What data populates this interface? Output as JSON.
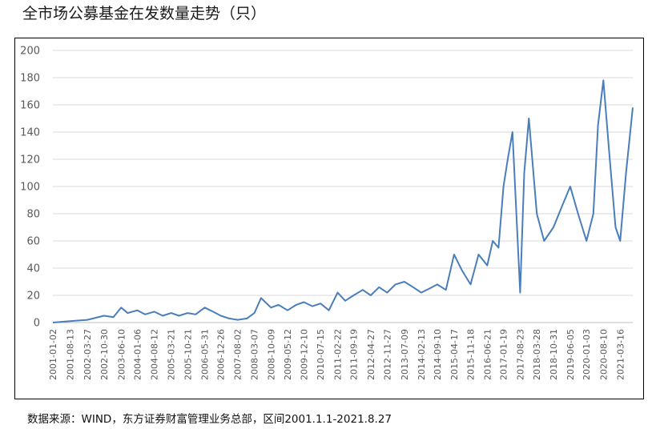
{
  "title": "全市场公募基金在发数量走势（只）",
  "source": "数据来源：WIND，东方证券财富管理业务总部，区间2001.1.1-2021.8.27",
  "colors": {
    "line": "#4a7ebb",
    "grid": "#d9d9d9",
    "axis": "#bfbfbf",
    "tick_text": "#595959"
  },
  "chart_data": {
    "type": "line",
    "title": "全市场公募基金在发数量走势（只）",
    "xlabel": "",
    "ylabel": "",
    "ylim": [
      0,
      200
    ],
    "y_ticks": [
      0,
      20,
      40,
      60,
      80,
      100,
      120,
      140,
      160,
      180,
      200
    ],
    "grid": true,
    "legend": "none",
    "x_ticks": [
      "2001-01-02",
      "2001-08-13",
      "2002-03-27",
      "2002-10-30",
      "2003-06-10",
      "2004-01-06",
      "2004-08-12",
      "2005-03-21",
      "2005-10-21",
      "2006-05-31",
      "2006-12-26",
      "2007-08-02",
      "2008-03-07",
      "2008-10-09",
      "2009-05-12",
      "2009-12-10",
      "2010-07-15",
      "2011-02-22",
      "2011-09-19",
      "2012-04-27",
      "2012-11-27",
      "2013-07-09",
      "2014-02-13",
      "2014-09-10",
      "2015-04-17",
      "2015-11-18",
      "2016-06-21",
      "2017-01-19",
      "2017-08-23",
      "2018-03-28",
      "2018-10-31",
      "2019-06-05",
      "2020-01-03",
      "2020-08-10",
      "2021-03-16"
    ],
    "series": [
      {
        "x": [
          "2001-01-02",
          "2001-08-13",
          "2002-03-27",
          "2002-10-30",
          "2003-03-01",
          "2003-06-10",
          "2003-09-01",
          "2004-01-06",
          "2004-04-15",
          "2004-08-12",
          "2004-12-01",
          "2005-03-21",
          "2005-07-01",
          "2005-10-21",
          "2006-02-01",
          "2006-05-31",
          "2006-09-15",
          "2006-12-26",
          "2007-04-15",
          "2007-08-02",
          "2007-12-01",
          "2008-03-07",
          "2008-06-01",
          "2008-10-09",
          "2009-01-15",
          "2009-05-12",
          "2009-09-01",
          "2009-12-10",
          "2010-04-01",
          "2010-07-15",
          "2010-11-01",
          "2011-02-22",
          "2011-06-01",
          "2011-09-19",
          "2012-01-15",
          "2012-04-27",
          "2012-08-15",
          "2012-11-27",
          "2013-03-15",
          "2013-07-09",
          "2013-11-01",
          "2014-02-13",
          "2014-06-01",
          "2014-09-10",
          "2015-01-01",
          "2015-04-17",
          "2015-08-01",
          "2015-11-18",
          "2016-03-01",
          "2016-06-21",
          "2016-09-01",
          "2016-11-15",
          "2017-01-19",
          "2017-03-15",
          "2017-05-15",
          "2017-08-23",
          "2017-10-15",
          "2017-12-15",
          "2018-03-28",
          "2018-07-01",
          "2018-10-31",
          "2019-02-15",
          "2019-06-05",
          "2019-09-15",
          "2020-01-03",
          "2020-04-01",
          "2020-06-01",
          "2020-08-10",
          "2020-11-01",
          "2021-01-15",
          "2021-03-16",
          "2021-06-01",
          "2021-08-27"
        ],
        "values": [
          0,
          1,
          2,
          5,
          4,
          11,
          7,
          9,
          6,
          8,
          5,
          7,
          5,
          7,
          6,
          11,
          8,
          5,
          3,
          2,
          3,
          7,
          18,
          11,
          13,
          9,
          13,
          15,
          12,
          14,
          9,
          22,
          16,
          20,
          24,
          20,
          26,
          22,
          28,
          30,
          26,
          22,
          25,
          28,
          24,
          50,
          38,
          28,
          50,
          42,
          60,
          55,
          100,
          120,
          140,
          22,
          110,
          150,
          80,
          60,
          70,
          85,
          100,
          80,
          60,
          80,
          145,
          178,
          120,
          70,
          60,
          110,
          158
        ]
      }
    ]
  }
}
